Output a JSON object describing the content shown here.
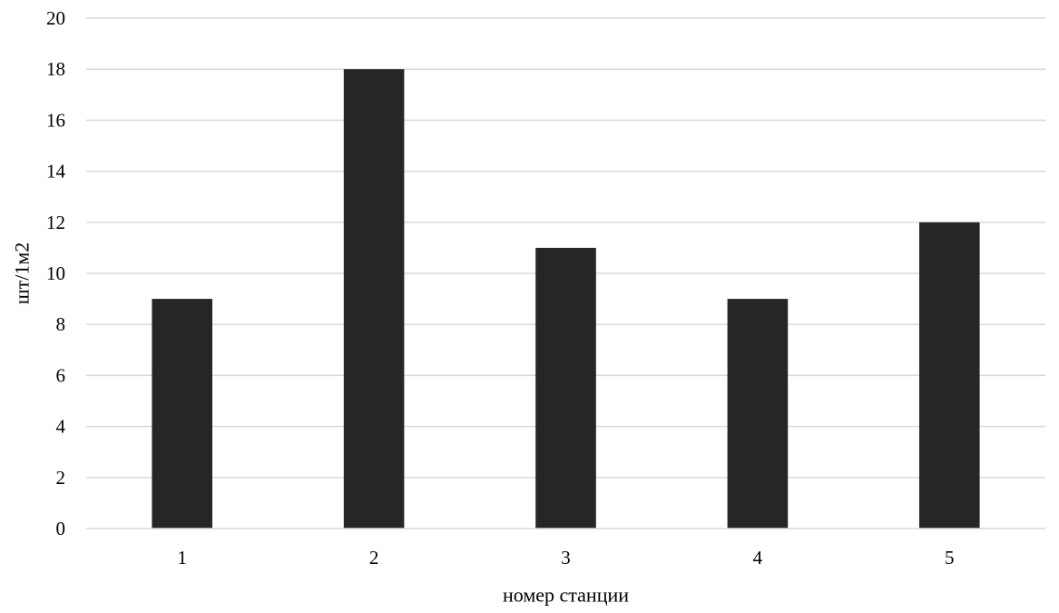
{
  "chart_data": {
    "type": "bar",
    "title": "",
    "xlabel": "номер станции",
    "ylabel": "шт/1м2",
    "categories": [
      "1",
      "2",
      "3",
      "4",
      "5"
    ],
    "values": [
      9,
      18,
      11,
      9,
      12
    ],
    "ylim": [
      0,
      20
    ],
    "yticks": [
      "0",
      "2",
      "4",
      "6",
      "8",
      "10",
      "12",
      "14",
      "16",
      "18",
      "20"
    ],
    "grid": true,
    "legend": "none",
    "bar_color": "#262626",
    "grid_color": "#d9d9d9",
    "axis_color": "#d9d9d9"
  }
}
